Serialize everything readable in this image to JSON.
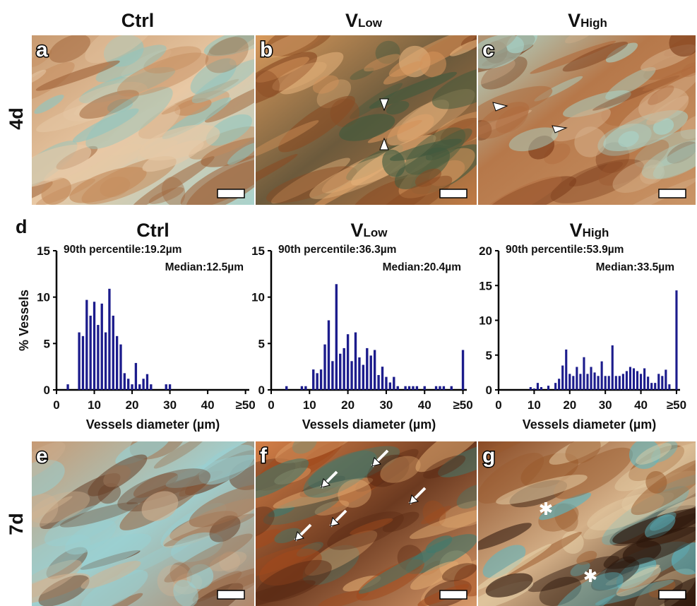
{
  "column_headers": [
    {
      "main": "Ctrl"
    },
    {
      "main": "V",
      "sub": "Low"
    },
    {
      "main": "V",
      "sub": "High"
    }
  ],
  "row_labels": [
    "4d",
    "7d"
  ],
  "panel_letters": [
    "a",
    "b",
    "c",
    "d",
    "e",
    "f",
    "g"
  ],
  "chart_data": [
    {
      "type": "bar",
      "title": "Ctrl",
      "annotations": [
        "90th percentile:19.2µm",
        "Median:12.5µm"
      ],
      "x_label": "Vessels diameter (µm)",
      "y_label": "% Vessels",
      "x": [
        3,
        6,
        7,
        8,
        9,
        10,
        11,
        12,
        13,
        14,
        15,
        16,
        17,
        18,
        19,
        20,
        21,
        22,
        23,
        24,
        25,
        29,
        30
      ],
      "values": [
        0.6,
        6.2,
        5.8,
        9.7,
        8.0,
        9.5,
        7.0,
        9.3,
        6.2,
        10.9,
        8.0,
        5.8,
        4.9,
        1.8,
        1.2,
        0.6,
        2.9,
        0.6,
        1.2,
        1.7,
        0.6,
        0.6,
        0.6
      ],
      "color": "#1c1c8c",
      "xlim": [
        0,
        51
      ],
      "ylim": [
        0,
        15
      ],
      "xticks": [
        0,
        10,
        20,
        30,
        40,
        {
          "value": 50,
          "label": "≥50"
        }
      ],
      "yticks": [
        0,
        5,
        10,
        15
      ]
    },
    {
      "type": "bar",
      "title": "V",
      "title_subscript": "Low",
      "annotations": [
        "90th percentile:36.3µm",
        "Median:20.4µm"
      ],
      "x_label": "Vessels diameter (µm)",
      "x": [
        4,
        8,
        9,
        11,
        12,
        13,
        14,
        15,
        16,
        17,
        18,
        19,
        20,
        21,
        22,
        23,
        24,
        25,
        26,
        27,
        28,
        29,
        30,
        31,
        32,
        33,
        35,
        36,
        37,
        38,
        40,
        43,
        44,
        45,
        47,
        50
      ],
      "values": [
        0.4,
        0.4,
        0.4,
        2.2,
        1.8,
        2.2,
        4.9,
        7.5,
        3.1,
        11.4,
        3.9,
        4.5,
        6.0,
        3.1,
        6.2,
        3.5,
        2.7,
        4.5,
        3.7,
        4.3,
        1.6,
        2.5,
        1.4,
        0.8,
        1.4,
        0.4,
        0.4,
        0.4,
        0.4,
        0.4,
        0.4,
        0.4,
        0.4,
        0.4,
        0.4,
        4.3
      ],
      "color": "#1c1c8c",
      "xlim": [
        0,
        51
      ],
      "ylim": [
        0,
        15
      ],
      "xticks": [
        0,
        10,
        20,
        30,
        40,
        {
          "value": 50,
          "label": "≥50"
        }
      ],
      "yticks": [
        0,
        5,
        10,
        15
      ]
    },
    {
      "type": "bar",
      "title": "V",
      "title_subscript": "High",
      "annotations": [
        "90th percentile:53.9µm",
        "Median:33.5µm"
      ],
      "x_label": "Vessels diameter (µm)",
      "x": [
        9,
        10,
        11,
        12,
        14,
        16,
        17,
        18,
        19,
        20,
        21,
        22,
        23,
        24,
        25,
        26,
        27,
        28,
        29,
        30,
        31,
        32,
        33,
        34,
        35,
        36,
        37,
        38,
        39,
        40,
        41,
        42,
        43,
        44,
        45,
        46,
        47,
        48,
        50
      ],
      "values": [
        0.4,
        0.2,
        1.0,
        0.4,
        0.6,
        1.0,
        1.6,
        3.5,
        5.8,
        2.3,
        2.0,
        3.3,
        2.3,
        4.7,
        2.3,
        3.3,
        2.5,
        2.0,
        4.1,
        2.0,
        2.0,
        6.4,
        2.0,
        2.0,
        2.3,
        2.7,
        3.3,
        3.1,
        2.7,
        2.3,
        3.1,
        1.9,
        1.0,
        1.0,
        2.3,
        2.0,
        2.9,
        0.8,
        14.3
      ],
      "color": "#1c1c8c",
      "xlim": [
        0,
        51
      ],
      "ylim": [
        0,
        20
      ],
      "xticks": [
        0,
        10,
        20,
        30,
        40,
        {
          "value": 50,
          "label": "≥50"
        }
      ],
      "yticks": [
        0,
        5,
        10,
        15,
        20
      ]
    }
  ]
}
